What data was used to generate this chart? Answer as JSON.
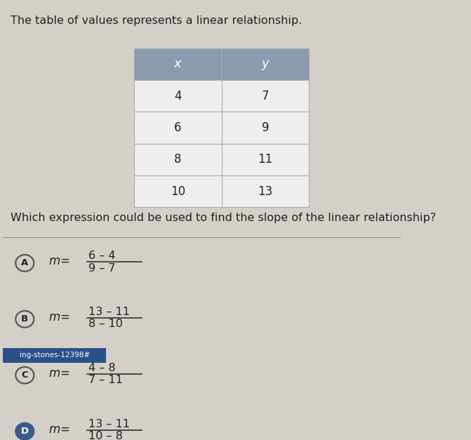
{
  "background_color": "#d4cfc8",
  "title_text": "The table of values represents a linear relationship.",
  "title_fontsize": 11.5,
  "question_text": "Which expression could be used to find the slope of the linear relationship?",
  "question_fontsize": 11.5,
  "table_headers": [
    "x",
    "y"
  ],
  "table_data": [
    [
      "4",
      "7"
    ],
    [
      "6",
      "9"
    ],
    [
      "8",
      "11"
    ],
    [
      "10",
      "13"
    ]
  ],
  "table_header_bg": "#8a9bb0",
  "table_row_bg": "#f0eeec",
  "table_border_color": "#aaaaaa",
  "options": [
    {
      "label": "A",
      "numerator": "6 – 4",
      "denominator": "9 – 7"
    },
    {
      "label": "B",
      "numerator": "13 – 11",
      "denominator": "8 – 10"
    },
    {
      "label": "C",
      "numerator": "4 – 8",
      "denominator": "7 – 11"
    },
    {
      "label": "D",
      "numerator": "13 – 11",
      "denominator": "10 – 8"
    }
  ],
  "option_circle_color": "#555555",
  "option_selected_color": "#3a5a8a",
  "correct_option": "D",
  "watermark_text": "ing-stones-12398#",
  "separator_color": "#999999",
  "text_color": "#222222",
  "italic_header": true
}
